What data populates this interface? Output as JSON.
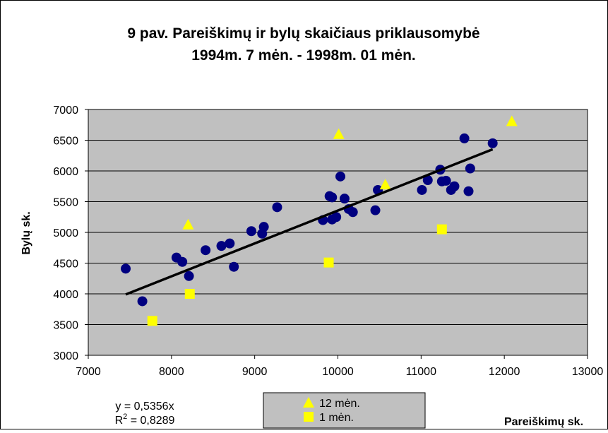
{
  "chart_data": {
    "type": "scatter",
    "title": [
      "9 pav. Pareiškimų ir bylų skaičiaus priklausomybė",
      "1994m. 7 mėn. - 1998m. 01 mėn."
    ],
    "x_label": "Pareiškimų sk.",
    "y_label": "Bylų sk.",
    "xlim": [
      7000,
      13000
    ],
    "xticks": [
      7000,
      8000,
      9000,
      10000,
      11000,
      12000,
      13000
    ],
    "ylim": [
      3000,
      7000
    ],
    "yticks": [
      3000,
      3500,
      4000,
      4500,
      5000,
      5500,
      6000,
      6500,
      7000
    ],
    "grid": true,
    "series": [
      {
        "color": "#000080",
        "marker": "circle",
        "x": [
          7450,
          7650,
          8060,
          8130,
          8210,
          8410,
          8600,
          8700,
          8750,
          8960,
          9090,
          9110,
          9270,
          9820,
          9900,
          9930,
          9930,
          9980,
          10030,
          10080,
          10130,
          10180,
          10450,
          10480,
          11010,
          11080,
          11230,
          11250,
          11300,
          11360,
          11400,
          11520,
          11570,
          11590,
          11860
        ],
        "values": [
          4410,
          3880,
          4590,
          4520,
          4290,
          4710,
          4780,
          4820,
          4440,
          5020,
          4980,
          5090,
          5410,
          5200,
          5590,
          5570,
          5210,
          5250,
          5910,
          5550,
          5380,
          5330,
          5360,
          5690,
          5690,
          5850,
          6020,
          5830,
          5840,
          5690,
          5750,
          6530,
          5670,
          6040,
          6450
        ]
      },
      {
        "name": "12 mėn.",
        "color": "#ffff00",
        "marker": "triangle",
        "x": [
          8200,
          10010,
          10570,
          12090
        ],
        "values": [
          5130,
          6600,
          5780,
          6810
        ]
      },
      {
        "name": "1 mėn.",
        "color": "#ffff00",
        "marker": "square",
        "x": [
          7770,
          8220,
          9890,
          11250
        ],
        "values": [
          3560,
          4000,
          4510,
          5050
        ]
      }
    ],
    "trendline": {
      "slope": 0.5356,
      "x": [
        7450,
        11860
      ],
      "color": "#000000",
      "equation": "y = 0,5356x",
      "r_symbol": "R",
      "r_power": "2",
      "r_text": " = 0,8289"
    }
  }
}
